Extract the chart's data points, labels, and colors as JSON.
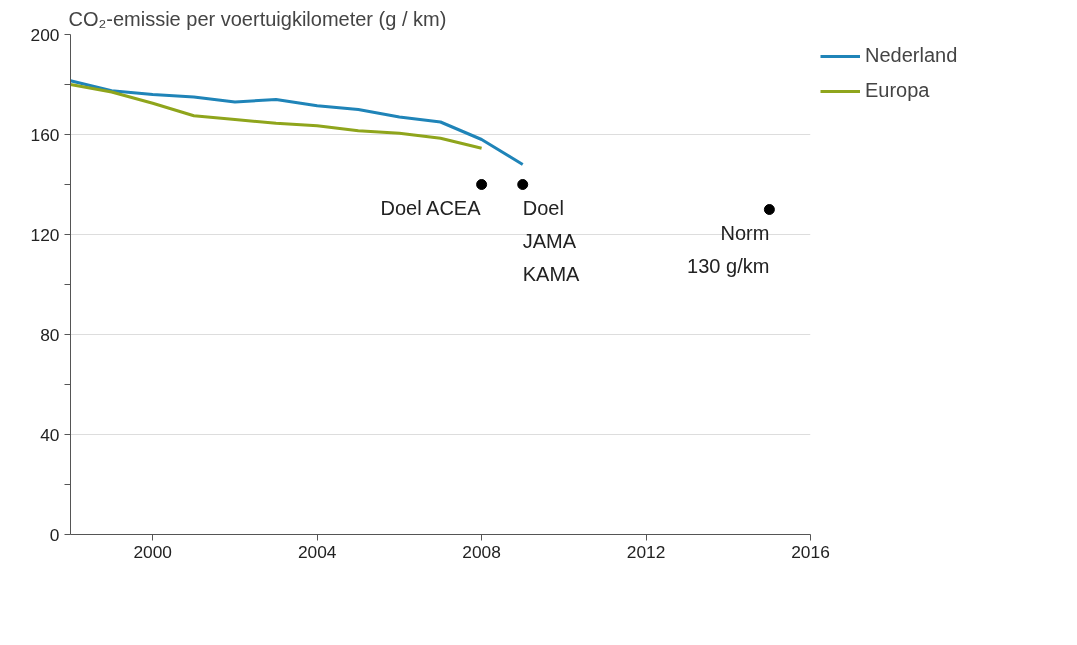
{
  "chart_data": {
    "type": "line",
    "ylabel": "CO₂-emissie per voertuigkilometer (g / km)",
    "x": [
      1998,
      1999,
      2000,
      2001,
      2002,
      2003,
      2004,
      2005,
      2006,
      2007,
      2008,
      2009
    ],
    "series": [
      {
        "name": "Nederland",
        "color": "#1f84b8",
        "values": [
          181.5,
          177.5,
          176,
          175,
          173,
          174,
          171.5,
          170,
          167,
          165,
          158,
          148
        ]
      },
      {
        "name": "Europa",
        "color": "#8fa51c",
        "values": [
          180,
          177,
          172.5,
          167.5,
          166,
          164.5,
          163.5,
          161.5,
          160.5,
          158.5,
          154.5,
          null
        ]
      },
      {
        "type": "scatter",
        "marker": "circle",
        "color": "#000000",
        "x": [
          2008,
          2009,
          2015
        ],
        "values": [
          140,
          140,
          130
        ]
      }
    ],
    "annotations": [
      {
        "text": "Doel ACEA",
        "x": 2008,
        "y": 140
      },
      {
        "text": "Doel\nJAMA\nKAMA",
        "x": 2009,
        "y": 140
      },
      {
        "text": "Norm\n130 g/km",
        "x": 2015,
        "y": 130
      }
    ],
    "xlim": [
      1998,
      2016
    ],
    "xticks": [
      2000,
      2004,
      2008,
      2012,
      2016
    ],
    "ylim": [
      0,
      200
    ],
    "yticks": [
      0,
      {
        "value": 20,
        "label": null
      },
      40,
      {
        "value": 60,
        "label": null
      },
      80,
      {
        "value": 100,
        "label": null
      },
      120,
      {
        "value": 140,
        "label": null
      },
      160,
      {
        "value": 180,
        "label": null
      },
      200
    ],
    "grid": "y",
    "legend": "top right",
    "line_style": "solid"
  }
}
